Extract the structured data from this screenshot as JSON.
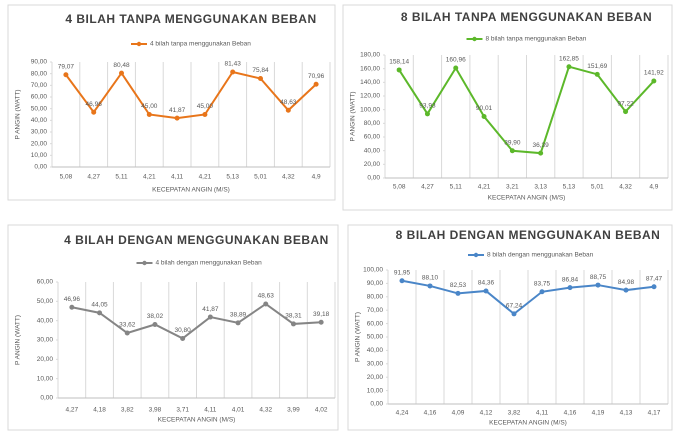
{
  "chart_data": [
    {
      "type": "line",
      "title": "4 BILAH TANPA MENGGUNAKAN BEBAN",
      "x_label": "KECEPATAN ANGIN (M/S)",
      "y_label": "P ANGIN (WATT)",
      "categories": [
        "5,08",
        "4,27",
        "5,11",
        "4,21",
        "4,11",
        "4,21",
        "5,13",
        "5,01",
        "4,32",
        "4,9"
      ],
      "series": [
        {
          "name": "4 bilah tanpa menggunakan Beban",
          "color": "#e8751a",
          "values": [
            79.07,
            46.96,
            80.48,
            45.0,
            41.87,
            45.0,
            81.43,
            75.84,
            48.63,
            70.96
          ],
          "value_labels": [
            "79,07",
            "46,96",
            "80,48",
            "45,00",
            "41,87",
            "45,00",
            "81,43",
            "75,84",
            "48,63",
            "70,96"
          ]
        }
      ],
      "ylim": [
        0,
        90
      ],
      "yticks": [
        {
          "value": 0,
          "label": "0,00"
        },
        {
          "value": 10,
          "label": "10,00"
        },
        {
          "value": 20,
          "label": "20,00"
        },
        {
          "value": 30,
          "label": "30,00"
        },
        {
          "value": 40,
          "label": "40,00"
        },
        {
          "value": 50,
          "label": "50,00"
        },
        {
          "value": 60,
          "label": "60,00"
        },
        {
          "value": 70,
          "label": "70,00"
        },
        {
          "value": 80,
          "label": "80,00"
        },
        {
          "value": 90,
          "label": "90,00"
        }
      ]
    },
    {
      "type": "line",
      "title": "8 BILAH TANPA MENGGUNAKAN BEBAN",
      "x_label": "KECEPATAN ANGIN (M/S)",
      "y_label": "P ANGIN (WATT)",
      "categories": [
        "5,08",
        "4,27",
        "5,11",
        "4,21",
        "3,21",
        "3,13",
        "5,13",
        "5,01",
        "4,32",
        "4,9"
      ],
      "series": [
        {
          "name": "8 bilah tanpa menggunakan Beban",
          "color": "#5cb82a",
          "values": [
            158.14,
            93.93,
            160.96,
            90.01,
            39.9,
            36.39,
            162.85,
            151.69,
            97.22,
            141.92
          ],
          "value_labels": [
            "158,14",
            "93,93",
            "160,96",
            "90,01",
            "39,90",
            "36,39",
            "162,85",
            "151,69",
            "97,22",
            "141,92"
          ]
        }
      ],
      "ylim": [
        0,
        180
      ],
      "yticks": [
        {
          "value": 0,
          "label": "0,00"
        },
        {
          "value": 20,
          "label": "20,00"
        },
        {
          "value": 40,
          "label": "40,00"
        },
        {
          "value": 60,
          "label": "60,00"
        },
        {
          "value": 80,
          "label": "80,00"
        },
        {
          "value": 100,
          "label": "100,00"
        },
        {
          "value": 120,
          "label": "120,00"
        },
        {
          "value": 140,
          "label": "140,00"
        },
        {
          "value": 160,
          "label": "160,00"
        },
        {
          "value": 180,
          "label": "180,00"
        }
      ]
    },
    {
      "type": "line",
      "title": "4 BILAH DENGAN MENGGUNAKAN BEBAN",
      "x_label": "KECEPATAN ANGIN (M/S)",
      "y_label": "P ANGIN (WATT)",
      "categories": [
        "4,27",
        "4,18",
        "3,82",
        "3,98",
        "3,71",
        "4,11",
        "4,01",
        "4,32",
        "3,99",
        "4,02"
      ],
      "series": [
        {
          "name": "4 bilah dengan menggunakan Beban",
          "color": "#858585",
          "values": [
            46.96,
            44.05,
            33.62,
            38.02,
            30.8,
            41.87,
            38.89,
            48.63,
            38.31,
            39.18
          ],
          "value_labels": [
            "46,96",
            "44,05",
            "33,62",
            "38,02",
            "30,80",
            "41,87",
            "38,89",
            "48,63",
            "38,31",
            "39,18"
          ]
        }
      ],
      "ylim": [
        0,
        60
      ],
      "yticks": [
        {
          "value": 0,
          "label": "0,00"
        },
        {
          "value": 10,
          "label": "10,00"
        },
        {
          "value": 20,
          "label": "20,00"
        },
        {
          "value": 30,
          "label": "30,00"
        },
        {
          "value": 40,
          "label": "40,00"
        },
        {
          "value": 50,
          "label": "50,00"
        },
        {
          "value": 60,
          "label": "60,00"
        }
      ]
    },
    {
      "type": "line",
      "title": "8 BILAH DENGAN MENGGUNAKAN BEBAN",
      "x_label": "KECEPATAN ANGIN (M/S)",
      "y_label": "P ANGIN (WATT)",
      "categories": [
        "4,24",
        "4,16",
        "4,09",
        "4,12",
        "3,82",
        "4,11",
        "4,16",
        "4,19",
        "4,13",
        "4,17"
      ],
      "series": [
        {
          "name": "8 bilah dengan menggunakan Beban",
          "color": "#4a86c8",
          "values": [
            91.95,
            88.1,
            82.53,
            84.36,
            67.24,
            83.75,
            86.84,
            88.75,
            84.98,
            87.47
          ],
          "value_labels": [
            "91,95",
            "88,10",
            "82,53",
            "84,36",
            "67,24",
            "83,75",
            "86,84",
            "88,75",
            "84,98",
            "87,47"
          ]
        }
      ],
      "ylim": [
        0,
        100
      ],
      "yticks": [
        {
          "value": 0,
          "label": "0,00"
        },
        {
          "value": 10,
          "label": "10,00"
        },
        {
          "value": 20,
          "label": "20,00"
        },
        {
          "value": 30,
          "label": "30,00"
        },
        {
          "value": 40,
          "label": "40,00"
        },
        {
          "value": 50,
          "label": "50,00"
        },
        {
          "value": 60,
          "label": "60,00"
        },
        {
          "value": 70,
          "label": "70,00"
        },
        {
          "value": 80,
          "label": "80,00"
        },
        {
          "value": 90,
          "label": "90,00"
        },
        {
          "value": 100,
          "label": "100,00"
        }
      ]
    }
  ]
}
